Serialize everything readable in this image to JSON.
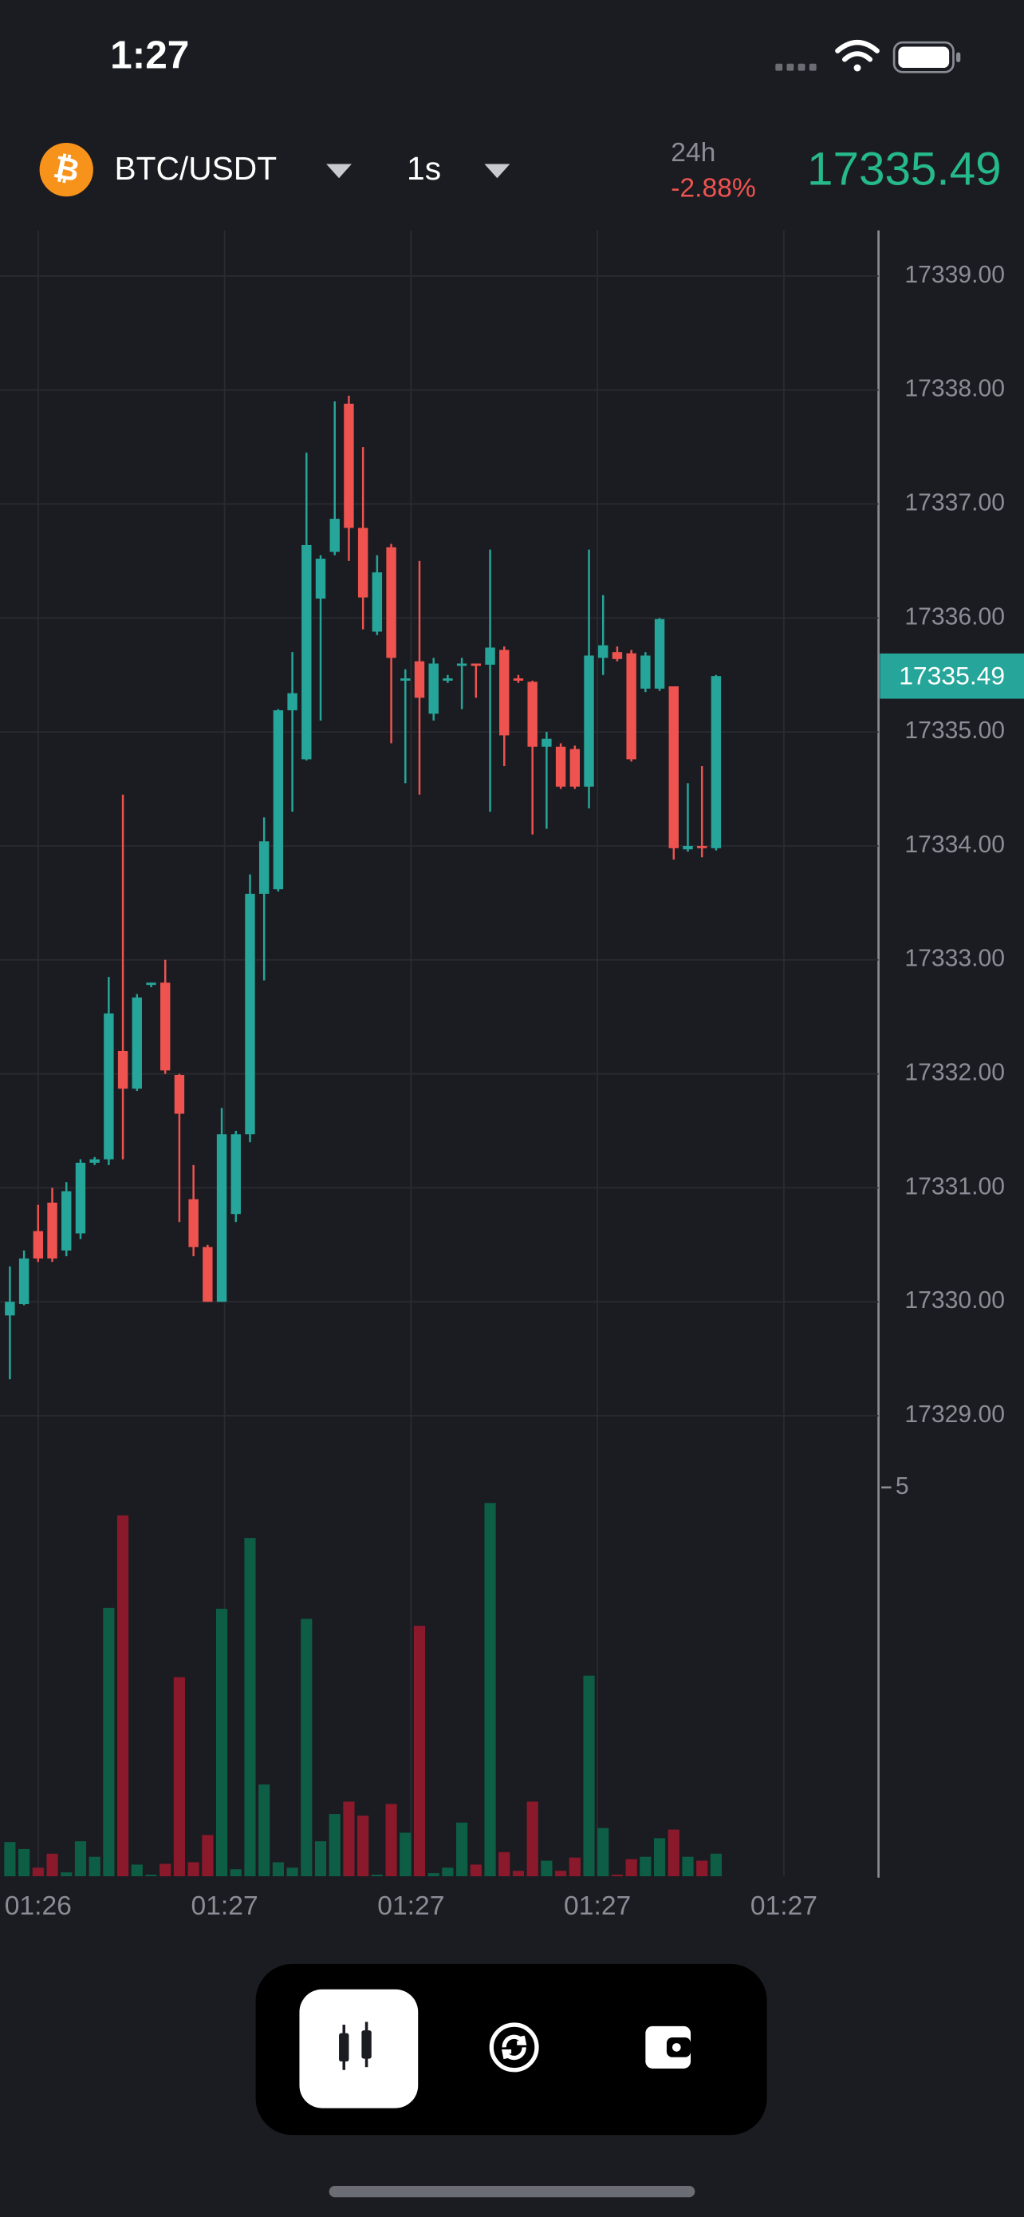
{
  "status": {
    "time": "1:27"
  },
  "header": {
    "pair": "BTC/USDT",
    "interval": "1s",
    "change_period": "24h",
    "change": "-2.88%",
    "price": "17335.49"
  },
  "chart_data": {
    "type": "candlestick",
    "up_color": "#26a69a",
    "down_color": "#ef5350",
    "volume_up_color": "#0d5e45",
    "volume_down_color": "#8a1a2b",
    "ylim": [
      17328.52,
      17339.4
    ],
    "yticks": [
      {
        "value": 17339,
        "label": "17339.00"
      },
      {
        "value": 17338,
        "label": "17338.00"
      },
      {
        "value": 17337,
        "label": "17337.00"
      },
      {
        "value": 17336,
        "label": "17336.00"
      },
      {
        "value": 17335,
        "label": "17335.00"
      },
      {
        "value": 17334,
        "label": "17334.00"
      },
      {
        "value": 17333,
        "label": "17333.00"
      },
      {
        "value": 17332,
        "label": "17332.00"
      },
      {
        "value": 17331,
        "label": "17331.00"
      },
      {
        "value": 17330,
        "label": "17330.00"
      },
      {
        "value": 17329,
        "label": "17329.00"
      }
    ],
    "volume_ylim": [
      0,
      5
    ],
    "volume_yticks": [
      5
    ],
    "xtick_labels": [
      "01:26",
      "01:27",
      "01:27",
      "01:27",
      "01:27"
    ],
    "grid": true,
    "open": [
      17329.88,
      17329.98,
      17330.62,
      17330.87,
      17330.45,
      17330.6,
      17331.22,
      17331.25,
      17332.2,
      17331.87,
      17332.78,
      17332.8,
      17331.99,
      17330.9,
      17330.48,
      17330.0,
      17330.77,
      17331.47,
      17333.58,
      17333.62,
      17335.19,
      17334.76,
      17336.17,
      17336.58,
      17337.88,
      17336.79,
      17335.88,
      17336.62,
      17335.45,
      17335.62,
      17335.16,
      17335.45,
      17335.58,
      17335.6,
      17335.59,
      17335.72,
      17335.47,
      17335.44,
      17334.87,
      17334.87,
      17334.85,
      17334.52,
      17335.65,
      17335.7,
      17335.69,
      17335.38,
      17335.38,
      17335.4,
      17333.97,
      17334.0,
      17333.98
    ],
    "high": [
      17330.31,
      17330.45,
      17330.85,
      17331.0,
      17331.05,
      17331.25,
      17331.27,
      17332.85,
      17334.45,
      17332.7,
      17332.8,
      17333.0,
      17332.0,
      17331.2,
      17330.5,
      17331.7,
      17331.5,
      17333.75,
      17334.25,
      17335.2,
      17335.7,
      17337.45,
      17336.55,
      17337.9,
      17337.95,
      17337.5,
      17336.55,
      17336.65,
      17335.55,
      17336.5,
      17335.65,
      17335.5,
      17335.65,
      17335.6,
      17336.6,
      17335.75,
      17335.5,
      17335.45,
      17335.0,
      17334.9,
      17334.88,
      17336.6,
      17336.2,
      17335.75,
      17335.72,
      17335.7,
      17336.0,
      17335.4,
      17334.55,
      17334.7,
      17335.5
    ],
    "low": [
      17329.32,
      17329.97,
      17330.35,
      17330.35,
      17330.4,
      17330.55,
      17331.2,
      17331.2,
      17331.25,
      17331.85,
      17332.76,
      17332.0,
      17330.7,
      17330.4,
      17330.0,
      17330.0,
      17330.7,
      17331.4,
      17332.82,
      17333.6,
      17334.3,
      17334.75,
      17335.1,
      17336.55,
      17336.5,
      17335.9,
      17335.85,
      17334.9,
      17334.55,
      17334.45,
      17335.1,
      17335.43,
      17335.2,
      17335.3,
      17334.3,
      17334.7,
      17335.43,
      17334.1,
      17334.15,
      17334.5,
      17334.5,
      17334.33,
      17335.5,
      17335.62,
      17334.74,
      17335.35,
      17335.36,
      17333.88,
      17333.95,
      17333.9,
      17333.96
    ],
    "close": [
      17330.0,
      17330.38,
      17330.38,
      17330.38,
      17330.97,
      17331.22,
      17331.25,
      17332.53,
      17331.87,
      17332.67,
      17332.8,
      17332.03,
      17331.65,
      17330.48,
      17330.0,
      17331.47,
      17331.47,
      17333.58,
      17334.04,
      17335.19,
      17335.34,
      17336.64,
      17336.52,
      17336.87,
      17336.79,
      17336.18,
      17336.4,
      17335.65,
      17335.47,
      17335.3,
      17335.6,
      17335.47,
      17335.6,
      17335.58,
      17335.74,
      17334.97,
      17335.45,
      17334.87,
      17334.94,
      17334.52,
      17334.52,
      17335.67,
      17335.76,
      17335.64,
      17334.76,
      17335.67,
      17335.99,
      17333.98,
      17334.0,
      17333.98,
      17335.49
    ],
    "volume": [
      0.44,
      0.35,
      0.11,
      0.29,
      0.05,
      0.45,
      0.25,
      3.45,
      4.64,
      0.15,
      0.02,
      0.16,
      2.56,
      0.18,
      0.53,
      3.44,
      0.09,
      4.35,
      1.18,
      0.18,
      0.11,
      3.31,
      0.45,
      0.8,
      0.96,
      0.78,
      0.02,
      0.93,
      0.56,
      3.22,
      0.04,
      0.11,
      0.69,
      0.15,
      4.8,
      0.31,
      0.07,
      0.96,
      0.2,
      0.07,
      0.24,
      2.58,
      0.62,
      0.02,
      0.22,
      0.25,
      0.49,
      0.6,
      0.25,
      0.2,
      0.29
    ]
  }
}
